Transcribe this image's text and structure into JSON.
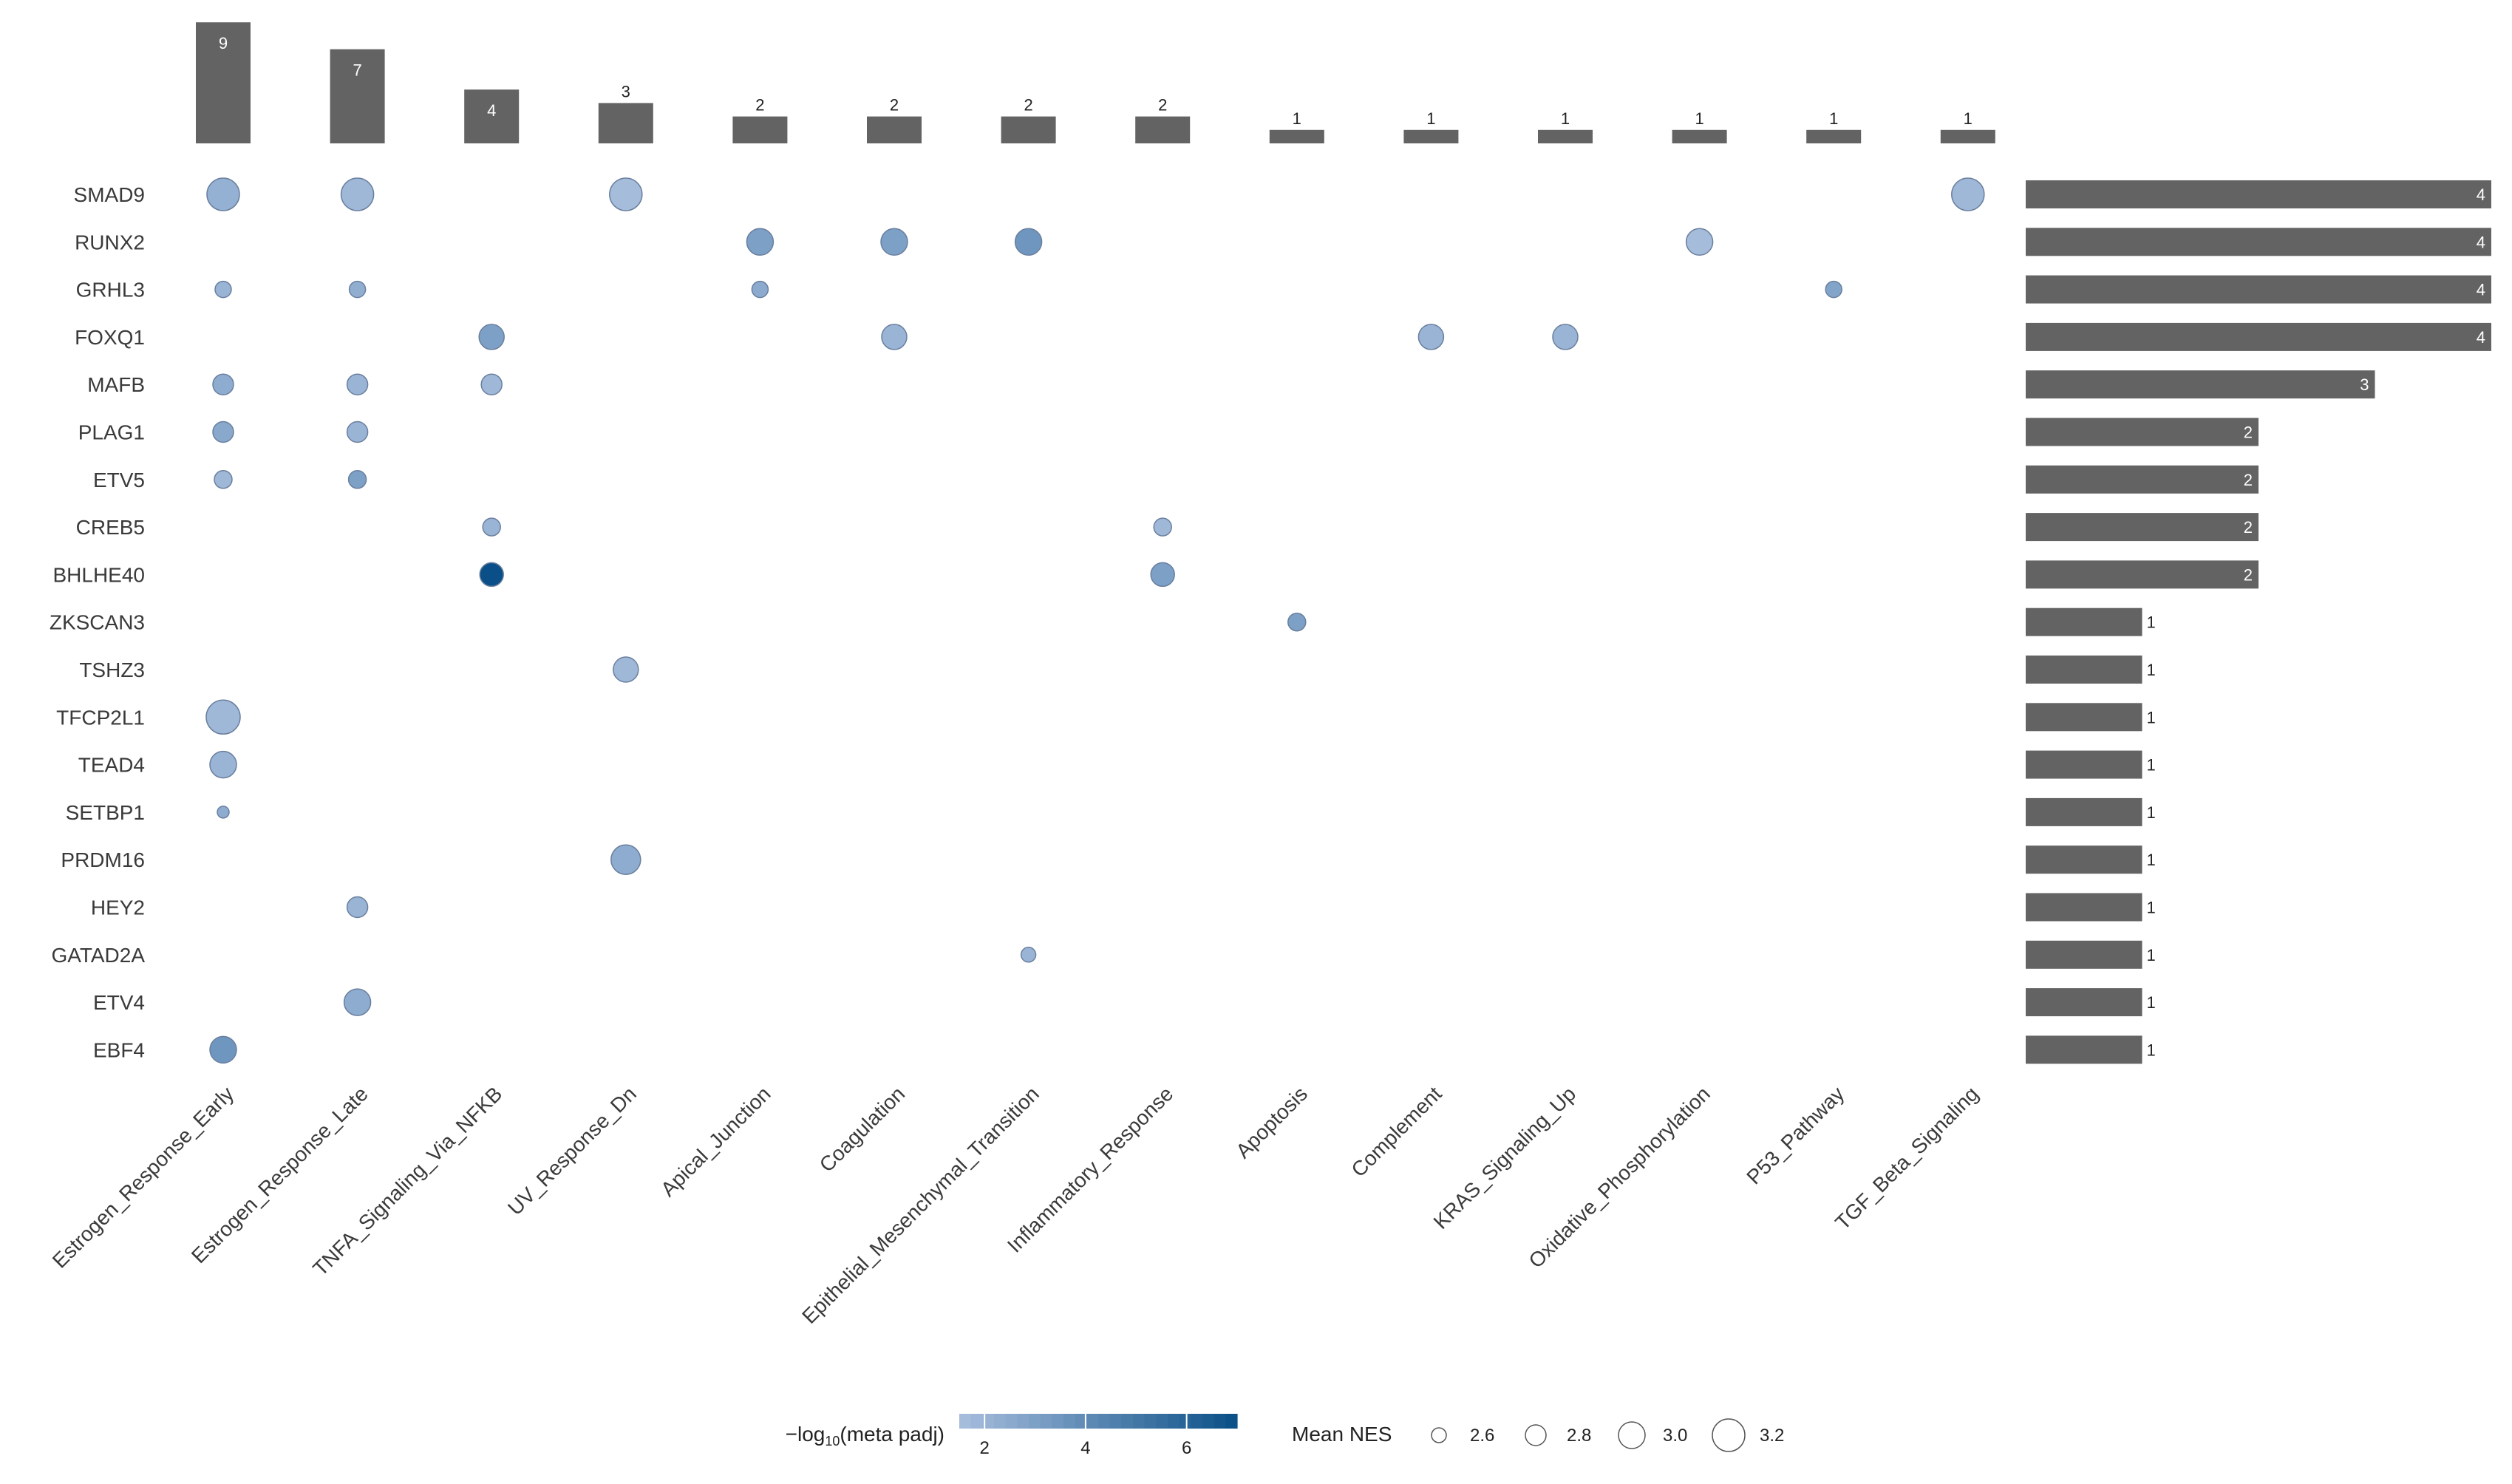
{
  "chart_data": {
    "type": "scatter",
    "genes": [
      "SMAD9",
      "RUNX2",
      "GRHL3",
      "FOXQ1",
      "MAFB",
      "PLAG1",
      "ETV5",
      "CREB5",
      "BHLHE40",
      "ZKSCAN3",
      "TSHZ3",
      "TFCP2L1",
      "TEAD4",
      "SETBP1",
      "PRDM16",
      "HEY2",
      "GATAD2A",
      "ETV4",
      "EBF4"
    ],
    "gene_counts": [
      4,
      4,
      4,
      4,
      3,
      2,
      2,
      2,
      2,
      1,
      1,
      1,
      1,
      1,
      1,
      1,
      1,
      1,
      1
    ],
    "pathways": [
      "Estrogen_Response_Early",
      "Estrogen_Response_Late",
      "TNFA_Signaling_Via_NFKB",
      "UV_Response_Dn",
      "Apical_Junction",
      "Coagulation",
      "Epithelial_Mesenchymal_Transition",
      "Inflammatory_Response",
      "Apoptosis",
      "Complement",
      "KRAS_Signaling_Up",
      "Oxidative_Phosphorylation",
      "P53_Pathway",
      "TGF_Beta_Signaling"
    ],
    "pathway_counts": [
      9,
      7,
      4,
      3,
      2,
      2,
      2,
      2,
      1,
      1,
      1,
      1,
      1,
      1
    ],
    "points": [
      {
        "gene": "SMAD9",
        "pathway": "Estrogen_Response_Early",
        "nes": 3.2,
        "neglog10_padj": 2.2
      },
      {
        "gene": "SMAD9",
        "pathway": "Estrogen_Response_Late",
        "nes": 3.2,
        "neglog10_padj": 1.8
      },
      {
        "gene": "SMAD9",
        "pathway": "UV_Response_Dn",
        "nes": 3.2,
        "neglog10_padj": 1.6
      },
      {
        "gene": "SMAD9",
        "pathway": "TGF_Beta_Signaling",
        "nes": 3.2,
        "neglog10_padj": 1.8
      },
      {
        "gene": "RUNX2",
        "pathway": "Apical_Junction",
        "nes": 3.0,
        "neglog10_padj": 3.0
      },
      {
        "gene": "RUNX2",
        "pathway": "Coagulation",
        "nes": 3.0,
        "neglog10_padj": 3.0
      },
      {
        "gene": "RUNX2",
        "pathway": "Epithelial_Mesenchymal_Transition",
        "nes": 3.0,
        "neglog10_padj": 3.5
      },
      {
        "gene": "RUNX2",
        "pathway": "Oxidative_Phosphorylation",
        "nes": 3.0,
        "neglog10_padj": 1.6
      },
      {
        "gene": "GRHL3",
        "pathway": "Estrogen_Response_Early",
        "nes": 2.65,
        "neglog10_padj": 2.0
      },
      {
        "gene": "GRHL3",
        "pathway": "Estrogen_Response_Late",
        "nes": 2.65,
        "neglog10_padj": 2.3
      },
      {
        "gene": "GRHL3",
        "pathway": "Apical_Junction",
        "nes": 2.65,
        "neglog10_padj": 2.5
      },
      {
        "gene": "GRHL3",
        "pathway": "P53_Pathway",
        "nes": 2.65,
        "neglog10_padj": 2.8
      },
      {
        "gene": "FOXQ1",
        "pathway": "TNFA_Signaling_Via_NFKB",
        "nes": 2.95,
        "neglog10_padj": 3.0
      },
      {
        "gene": "FOXQ1",
        "pathway": "Coagulation",
        "nes": 2.95,
        "neglog10_padj": 2.0
      },
      {
        "gene": "FOXQ1",
        "pathway": "Complement",
        "nes": 2.95,
        "neglog10_padj": 2.0
      },
      {
        "gene": "FOXQ1",
        "pathway": "KRAS_Signaling_Up",
        "nes": 2.95,
        "neglog10_padj": 2.0
      },
      {
        "gene": "MAFB",
        "pathway": "Estrogen_Response_Early",
        "nes": 2.8,
        "neglog10_padj": 2.4
      },
      {
        "gene": "MAFB",
        "pathway": "Estrogen_Response_Late",
        "nes": 2.8,
        "neglog10_padj": 2.0
      },
      {
        "gene": "MAFB",
        "pathway": "TNFA_Signaling_Via_NFKB",
        "nes": 2.8,
        "neglog10_padj": 1.8
      },
      {
        "gene": "PLAG1",
        "pathway": "Estrogen_Response_Early",
        "nes": 2.8,
        "neglog10_padj": 2.6
      },
      {
        "gene": "PLAG1",
        "pathway": "Estrogen_Response_Late",
        "nes": 2.8,
        "neglog10_padj": 2.0
      },
      {
        "gene": "ETV5",
        "pathway": "Estrogen_Response_Early",
        "nes": 2.7,
        "neglog10_padj": 1.8
      },
      {
        "gene": "ETV5",
        "pathway": "Estrogen_Response_Late",
        "nes": 2.7,
        "neglog10_padj": 3.0
      },
      {
        "gene": "CREB5",
        "pathway": "TNFA_Signaling_Via_NFKB",
        "nes": 2.7,
        "neglog10_padj": 2.0
      },
      {
        "gene": "CREB5",
        "pathway": "Inflammatory_Response",
        "nes": 2.7,
        "neglog10_padj": 1.8
      },
      {
        "gene": "BHLHE40",
        "pathway": "TNFA_Signaling_Via_NFKB",
        "nes": 2.9,
        "neglog10_padj": 7.0
      },
      {
        "gene": "BHLHE40",
        "pathway": "Inflammatory_Response",
        "nes": 2.9,
        "neglog10_padj": 3.0
      },
      {
        "gene": "ZKSCAN3",
        "pathway": "Apoptosis",
        "nes": 2.7,
        "neglog10_padj": 3.0
      },
      {
        "gene": "TSHZ3",
        "pathway": "UV_Response_Dn",
        "nes": 2.95,
        "neglog10_padj": 1.8
      },
      {
        "gene": "TFCP2L1",
        "pathway": "Estrogen_Response_Early",
        "nes": 3.25,
        "neglog10_padj": 1.8
      },
      {
        "gene": "TEAD4",
        "pathway": "Estrogen_Response_Early",
        "nes": 3.0,
        "neglog10_padj": 2.0
      },
      {
        "gene": "SETBP1",
        "pathway": "Estrogen_Response_Early",
        "nes": 2.5,
        "neglog10_padj": 2.4
      },
      {
        "gene": "PRDM16",
        "pathway": "UV_Response_Dn",
        "nes": 3.1,
        "neglog10_padj": 2.4
      },
      {
        "gene": "HEY2",
        "pathway": "Estrogen_Response_Late",
        "nes": 2.8,
        "neglog10_padj": 2.0
      },
      {
        "gene": "GATAD2A",
        "pathway": "Epithelial_Mesenchymal_Transition",
        "nes": 2.6,
        "neglog10_padj": 2.0
      },
      {
        "gene": "ETV4",
        "pathway": "Estrogen_Response_Late",
        "nes": 3.0,
        "neglog10_padj": 2.4
      },
      {
        "gene": "EBF4",
        "pathway": "Estrogen_Response_Early",
        "nes": 3.0,
        "neglog10_padj": 3.5
      }
    ],
    "color_legend": {
      "title_prefix": "−log",
      "title_sub": "10",
      "title_suffix": "(meta padj)",
      "ticks": [
        2,
        4,
        6
      ],
      "range": [
        1.5,
        7.0
      ],
      "color_low": "#a8bedd",
      "color_high": "#0a4f87"
    },
    "size_legend": {
      "title": "Mean NES",
      "values": [
        2.6,
        2.8,
        3.0,
        3.2
      ],
      "value_labels": [
        "2.6",
        "2.8",
        "3.0",
        "3.2"
      ],
      "range": [
        2.5,
        3.3
      ]
    },
    "bar_color": "#636363",
    "grid": false
  }
}
